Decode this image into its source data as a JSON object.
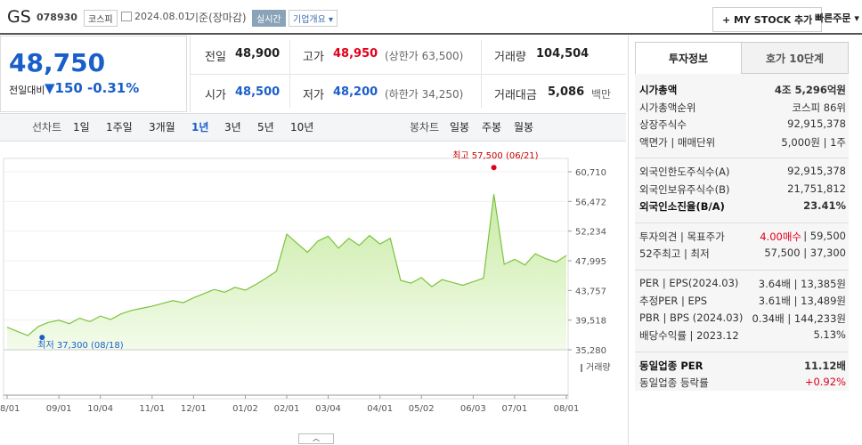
{
  "header": {
    "name": "GS",
    "code": "078930",
    "market": "코스피",
    "date": "2024.08.01",
    "basis": "기준(장마감)",
    "realtime": "실시간",
    "company": "기업개요",
    "mystock": "MY STOCK 추가",
    "quick": "빠른주문"
  },
  "summary": {
    "price": "48,750",
    "change_label": "전일대비",
    "change": "150",
    "change_rate": "-0.31%",
    "cells": [
      {
        "label": "전일",
        "value": "48,900"
      },
      {
        "label": "고가",
        "value": "48,950",
        "note": "(상한가 63,500)"
      },
      {
        "label": "거래량",
        "value": "104,504"
      },
      {
        "label": "시가",
        "value": "48,500"
      },
      {
        "label": "저가",
        "value": "48,200",
        "note": "(하한가 34,250)"
      },
      {
        "label": "거래대금",
        "value": "5,086",
        "note": "백만"
      }
    ]
  },
  "chart_nav": {
    "line_label": "선차트",
    "line_periods": [
      "1일",
      "1주일",
      "3개월",
      "1년",
      "3년",
      "5년",
      "10년"
    ],
    "selected": "1년",
    "candle_label": "봉차트",
    "candle_periods": [
      "일봉",
      "주봉",
      "월봉"
    ]
  },
  "chart": {
    "type": "area",
    "color": "#7cc33d",
    "values": [
      38500,
      37900,
      37300,
      38600,
      39200,
      39500,
      39000,
      39800,
      39300,
      40100,
      39600,
      40400,
      40900,
      41200,
      41500,
      41900,
      42300,
      42000,
      42700,
      43300,
      43900,
      43500,
      44200,
      43800,
      44600,
      45500,
      46500,
      51800,
      50500,
      49200,
      50800,
      51500,
      49800,
      51200,
      50200,
      51600,
      50400,
      51200,
      45200,
      44800,
      45600,
      44300,
      45300,
      44900,
      44500,
      45000,
      45500,
      57500,
      47500,
      48200,
      47400,
      49000,
      48300,
      47800,
      48750
    ],
    "ylim": [
      35280,
      60710
    ],
    "yticks": [
      {
        "value": 60710,
        "label": "60,710"
      },
      {
        "value": 56472,
        "label": "56,472"
      },
      {
        "value": 52234,
        "label": "52,234"
      },
      {
        "value": 47995,
        "label": "47,995"
      },
      {
        "value": 43757,
        "label": "43,757"
      },
      {
        "value": 39518,
        "label": "39,518"
      },
      {
        "value": 35280,
        "label": "35,280"
      }
    ],
    "xticks": [
      {
        "value": 0,
        "label": "08/01"
      },
      {
        "value": 5,
        "label": "09/01"
      },
      {
        "value": 9,
        "label": "10/04"
      },
      {
        "value": 14,
        "label": "11/01"
      },
      {
        "value": 18,
        "label": "12/01"
      },
      {
        "value": 23,
        "label": "01/02"
      },
      {
        "value": 27,
        "label": "02/01"
      },
      {
        "value": 31,
        "label": "03/04"
      },
      {
        "value": 36,
        "label": "04/01"
      },
      {
        "value": 40,
        "label": "05/02"
      },
      {
        "value": 45,
        "label": "06/03"
      },
      {
        "value": 49,
        "label": "07/01"
      },
      {
        "value": 54,
        "label": "08/01"
      }
    ],
    "max_label": "최고 57,500 (06/21)",
    "min_label": "최저 37,300 (08/18)",
    "volume_label": "거래량"
  },
  "side": {
    "tabs": [
      "투자정보",
      "호가 10단계"
    ],
    "sections": [
      [
        {
          "label": "시가총액",
          "value": "4조 5,296억원",
          "bold": true
        },
        {
          "label": "시가총액순위",
          "value": "코스피 86위"
        },
        {
          "label": "상장주식수",
          "value": "92,915,378"
        },
        {
          "label": "액면가 | 매매단위",
          "value": "5,000원 | 1주"
        }
      ],
      [
        {
          "label": "외국인한도주식수(A)",
          "value": "92,915,378"
        },
        {
          "label": "외국인보유주식수(B)",
          "value": "21,751,812"
        },
        {
          "label": "외국인소진율(B/A)",
          "value": "23.41%",
          "bold": true
        }
      ],
      [
        {
          "label": "투자의견 | 목표주가",
          "value": "4.00매수",
          "value2": "| 59,500",
          "red": true
        },
        {
          "label": "52주최고 | 최저",
          "value": "57,500 | 37,300"
        }
      ],
      [
        {
          "label": "PER | EPS(2024.03)",
          "value": "3.64배 | 13,385원"
        },
        {
          "label": "추정PER | EPS",
          "value": "3.61배 | 13,489원"
        },
        {
          "label": "PBR | BPS (2024.03)",
          "value": "0.34배 | 144,233원"
        },
        {
          "label": "배당수익률 | 2023.12",
          "value": "5.13%"
        }
      ],
      [
        {
          "label": "동일업종 PER",
          "value": "11.12배",
          "bold": true
        },
        {
          "label": "동일업종 등락률",
          "value": "+0.92%",
          "red": true
        }
      ]
    ]
  }
}
